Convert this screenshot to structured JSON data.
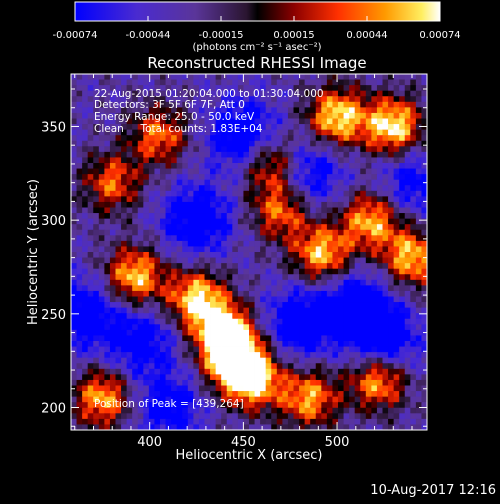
{
  "chart_data": {
    "type": "heatmap",
    "title": "Reconstructed RHESSI Image",
    "xlabel": "Heliocentric X (arcsec)",
    "ylabel": "Heliocentric Y (arcsec)",
    "xlim": [
      358,
      548
    ],
    "ylim": [
      188,
      378
    ],
    "xticks": [
      "400",
      "450",
      "500"
    ],
    "yticks": [
      "200",
      "250",
      "300",
      "350"
    ],
    "colorbar": {
      "range": [
        -0.00074,
        0.00074
      ],
      "ticks": [
        "-0.00074",
        "-0.00044",
        "-0.00015",
        "0.00015",
        "0.00044",
        "0.00074"
      ],
      "unit_label": "(photons cm⁻² s⁻¹ asec⁻²)"
    },
    "annotations": {
      "time_range": "22-Aug-2015 01:20:04.000 to 01:30:04.000",
      "detectors": "Detectors: 3F 5F 6F 7F, Att 0",
      "energy_range": "Energy Range: 25.0 - 50.0 keV",
      "method_counts": "Clean     Total counts: 1.83E+04",
      "peak_position": "Position of Peak = [439,264]"
    },
    "peak": [
      439,
      264
    ],
    "bright_regions": [
      {
        "x": 440,
        "y": 240,
        "level": 1.0
      },
      {
        "x": 445,
        "y": 225,
        "level": 0.95
      },
      {
        "x": 455,
        "y": 215,
        "level": 0.9
      },
      {
        "x": 425,
        "y": 258,
        "level": 0.9
      },
      {
        "x": 392,
        "y": 270,
        "level": 0.85
      },
      {
        "x": 500,
        "y": 355,
        "level": 0.95
      },
      {
        "x": 530,
        "y": 350,
        "level": 1.0
      },
      {
        "x": 540,
        "y": 280,
        "level": 0.8
      },
      {
        "x": 518,
        "y": 300,
        "level": 0.75
      },
      {
        "x": 485,
        "y": 205,
        "level": 0.7
      },
      {
        "x": 522,
        "y": 215,
        "level": 0.85
      },
      {
        "x": 375,
        "y": 205,
        "level": 0.75
      },
      {
        "x": 465,
        "y": 330,
        "level": 0.6
      },
      {
        "x": 405,
        "y": 345,
        "level": 0.55
      },
      {
        "x": 380,
        "y": 320,
        "level": 0.5
      },
      {
        "x": 492,
        "y": 282,
        "level": 0.8
      },
      {
        "x": 470,
        "y": 305,
        "level": 0.55
      }
    ],
    "dark_regions": [
      {
        "x": 450,
        "y": 345,
        "level": -0.9
      },
      {
        "x": 480,
        "y": 245,
        "level": -0.85
      },
      {
        "x": 425,
        "y": 300,
        "level": -0.85
      },
      {
        "x": 510,
        "y": 255,
        "level": -0.8
      },
      {
        "x": 525,
        "y": 235,
        "level": -0.9
      },
      {
        "x": 395,
        "y": 235,
        "level": -0.7
      },
      {
        "x": 365,
        "y": 250,
        "level": -0.8
      },
      {
        "x": 485,
        "y": 325,
        "level": -0.7
      },
      {
        "x": 410,
        "y": 200,
        "level": -0.65
      },
      {
        "x": 540,
        "y": 320,
        "level": -0.6
      }
    ]
  },
  "footer": {
    "timestamp": "10-Aug-2017 12:16"
  }
}
